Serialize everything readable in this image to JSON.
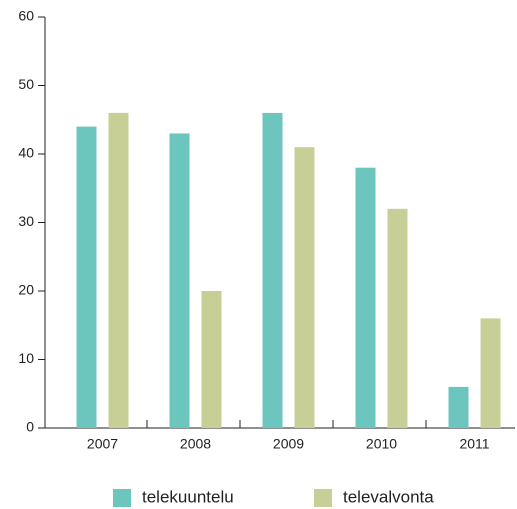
{
  "chart_data": {
    "type": "bar",
    "categories": [
      "2007",
      "2008",
      "2009",
      "2010",
      "2011"
    ],
    "series": [
      {
        "name": "telekuuntelu",
        "color": "#6cc6bd",
        "values": [
          44,
          43,
          46,
          38,
          6
        ]
      },
      {
        "name": "televalvonta",
        "color": "#c8cf96",
        "values": [
          46,
          20,
          41,
          32,
          16
        ]
      }
    ],
    "ylim": [
      0,
      60
    ],
    "yticks": [
      0,
      10,
      20,
      30,
      40,
      50,
      60
    ],
    "grid": false,
    "legend": "bottom"
  }
}
